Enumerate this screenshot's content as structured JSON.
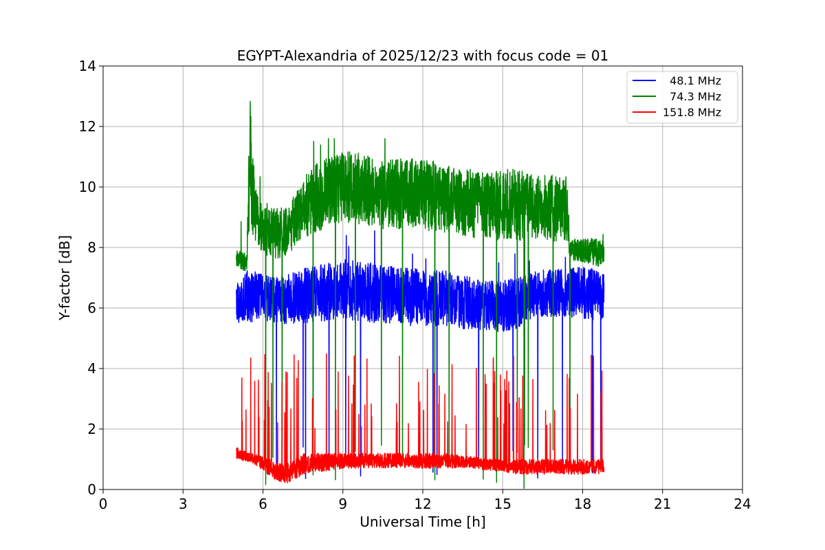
{
  "chart_data": {
    "type": "line",
    "title": "EGYPT-Alexandria of 2025/12/23 with focus code = 01",
    "xlabel": "Universal Time [h]",
    "ylabel": "Y-factor [dB]",
    "xlim": [
      0,
      24
    ],
    "ylim": [
      0,
      14
    ],
    "xticks": [
      0,
      3,
      6,
      9,
      12,
      15,
      18,
      21,
      24
    ],
    "yticks": [
      0,
      2,
      4,
      6,
      8,
      10,
      12,
      14
    ],
    "grid": true,
    "legend_position": "top-right",
    "series": [
      {
        "name": "  48.1 MHz",
        "color": "#0000ff",
        "x": [
          5.0,
          5.5,
          6.0,
          6.5,
          7.0,
          7.5,
          8.0,
          8.5,
          9.0,
          9.5,
          10.0,
          10.5,
          11.0,
          11.5,
          12.0,
          12.5,
          13.0,
          13.5,
          14.0,
          14.5,
          15.0,
          15.5,
          16.0,
          16.5,
          17.0,
          17.5,
          18.0,
          18.5,
          18.8
        ],
        "baseline": [
          5.5,
          5.5,
          5.6,
          5.5,
          5.4,
          5.5,
          5.5,
          5.6,
          5.6,
          5.5,
          5.5,
          5.5,
          5.5,
          5.4,
          5.4,
          5.4,
          5.4,
          5.3,
          5.3,
          5.2,
          5.2,
          5.3,
          5.6,
          5.7,
          5.7,
          5.7,
          5.6,
          5.6,
          5.6
        ],
        "upper": [
          7.0,
          7.3,
          7.1,
          7.0,
          7.2,
          7.3,
          7.4,
          7.5,
          7.6,
          7.6,
          7.5,
          7.4,
          7.4,
          7.3,
          7.3,
          7.3,
          7.2,
          7.1,
          7.0,
          6.9,
          6.9,
          7.0,
          7.2,
          7.3,
          7.3,
          7.3,
          7.4,
          7.3,
          7.2
        ]
      },
      {
        "name": "  74.3 MHz",
        "color": "#008000",
        "x": [
          5.0,
          5.4,
          5.5,
          5.7,
          6.0,
          6.5,
          7.0,
          7.5,
          8.0,
          8.5,
          9.0,
          9.5,
          10.0,
          10.5,
          11.0,
          11.5,
          12.0,
          12.5,
          13.0,
          13.5,
          14.0,
          14.5,
          15.0,
          15.5,
          16.0,
          16.5,
          17.0,
          17.45,
          17.5,
          18.0,
          18.5,
          18.8
        ],
        "baseline": [
          7.3,
          7.2,
          8.5,
          8.2,
          7.8,
          7.6,
          7.8,
          8.3,
          8.5,
          8.7,
          8.8,
          8.8,
          8.7,
          8.6,
          8.6,
          8.6,
          8.6,
          8.5,
          8.5,
          8.4,
          8.3,
          8.3,
          8.2,
          8.2,
          8.3,
          8.3,
          8.2,
          8.2,
          7.6,
          7.5,
          7.4,
          7.3
        ],
        "upper": [
          7.9,
          7.8,
          13.3,
          10.0,
          9.3,
          9.3,
          9.5,
          10.3,
          10.8,
          11.0,
          11.2,
          11.2,
          11.0,
          10.9,
          10.9,
          11.0,
          10.9,
          10.8,
          10.7,
          10.6,
          10.6,
          10.5,
          10.6,
          10.6,
          10.5,
          10.4,
          10.4,
          10.5,
          8.3,
          8.3,
          8.3,
          8.2
        ]
      },
      {
        "name": "151.8 MHz",
        "color": "#ff0000",
        "x": [
          5.0,
          5.5,
          6.0,
          6.5,
          7.0,
          7.5,
          8.0,
          8.5,
          9.0,
          9.5,
          10.0,
          10.5,
          11.0,
          11.5,
          12.0,
          12.5,
          13.0,
          13.5,
          14.0,
          14.5,
          15.0,
          15.5,
          16.0,
          16.5,
          17.0,
          17.5,
          18.0,
          18.5,
          18.8
        ],
        "baseline": [
          1.0,
          0.9,
          0.6,
          0.3,
          0.2,
          0.5,
          0.6,
          0.6,
          0.7,
          0.7,
          0.7,
          0.7,
          0.7,
          0.7,
          0.7,
          0.7,
          0.7,
          0.7,
          0.7,
          0.6,
          0.6,
          0.5,
          0.5,
          0.5,
          0.5,
          0.5,
          0.5,
          0.5,
          0.5
        ],
        "upper": [
          1.4,
          1.2,
          1.1,
          0.9,
          0.9,
          1.2,
          1.2,
          1.2,
          1.2,
          1.2,
          1.2,
          1.2,
          1.2,
          1.2,
          1.2,
          1.2,
          1.2,
          1.1,
          1.1,
          1.0,
          1.0,
          1.0,
          1.0,
          1.0,
          1.0,
          1.0,
          1.0,
          1.0,
          1.0
        ]
      }
    ]
  }
}
